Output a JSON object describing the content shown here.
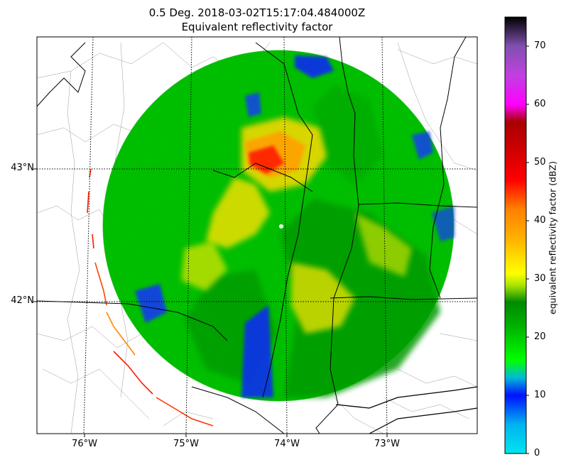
{
  "title": {
    "line1": "0.5 Deg. 2018-03-02T15:17:04.484000Z",
    "line2": "Equivalent reflectivity factor"
  },
  "map": {
    "lat_labels": [
      "43°N",
      "42°N"
    ],
    "lon_labels": [
      "76°W",
      "75°W",
      "74°W",
      "73°W"
    ],
    "gridlines": "dotted",
    "field": "equivalent reflectivity factor",
    "radar_site_marker_color": "#ffffff"
  },
  "colorbar": {
    "label": "equivalent reflectivity factor (dBZ)",
    "ticks": [
      "0",
      "10",
      "20",
      "30",
      "40",
      "50",
      "60",
      "70"
    ],
    "range": [
      0,
      75
    ],
    "stops": [
      {
        "v": 0,
        "c": "#00e5ee"
      },
      {
        "v": 5,
        "c": "#00b3f0"
      },
      {
        "v": 10,
        "c": "#0010ff"
      },
      {
        "v": 13,
        "c": "#00b8d8"
      },
      {
        "v": 16,
        "c": "#00ff00"
      },
      {
        "v": 22,
        "c": "#00b000"
      },
      {
        "v": 26,
        "c": "#008a00"
      },
      {
        "v": 29,
        "c": "#b0e600"
      },
      {
        "v": 31,
        "c": "#ffff00"
      },
      {
        "v": 37,
        "c": "#ffb000"
      },
      {
        "v": 42,
        "c": "#ff8000"
      },
      {
        "v": 47,
        "c": "#ff0000"
      },
      {
        "v": 52,
        "c": "#d00000"
      },
      {
        "v": 57,
        "c": "#a80000"
      },
      {
        "v": 60,
        "c": "#ff00ff"
      },
      {
        "v": 65,
        "c": "#c040e0"
      },
      {
        "v": 70,
        "c": "#8050b0"
      },
      {
        "v": 75,
        "c": "#000000"
      }
    ]
  }
}
